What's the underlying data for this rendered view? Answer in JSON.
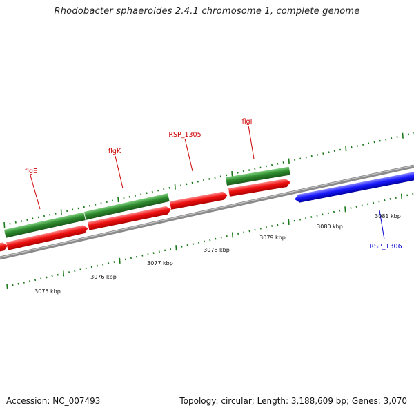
{
  "title": "Rhodobacter sphaeroides 2.4.1 chromosome 1, complete genome",
  "footer": {
    "accession": "Accession: NC_007493",
    "summary": "Topology: circular; Length: 3,188,609 bp; Genes: 3,070"
  },
  "colors": {
    "forward_gene": "#2e8b2e",
    "reverse_gene": "#ee1111",
    "rsp1306_gene": "#1a1aff",
    "backbone": "#8a8a8a",
    "tick": "#1a7a1a",
    "label_red": "#cc0000",
    "label_blue": "#0000cc"
  },
  "scale_labels": [
    "3075 kbp",
    "3076 kbp",
    "3077 kbp",
    "3078 kbp",
    "3079 kbp",
    "3080 kbp",
    "3081 kbp"
  ],
  "gene_labels": [
    "flgE",
    "flgK",
    "RSP_1305",
    "flgI",
    "RSP_1306"
  ]
}
